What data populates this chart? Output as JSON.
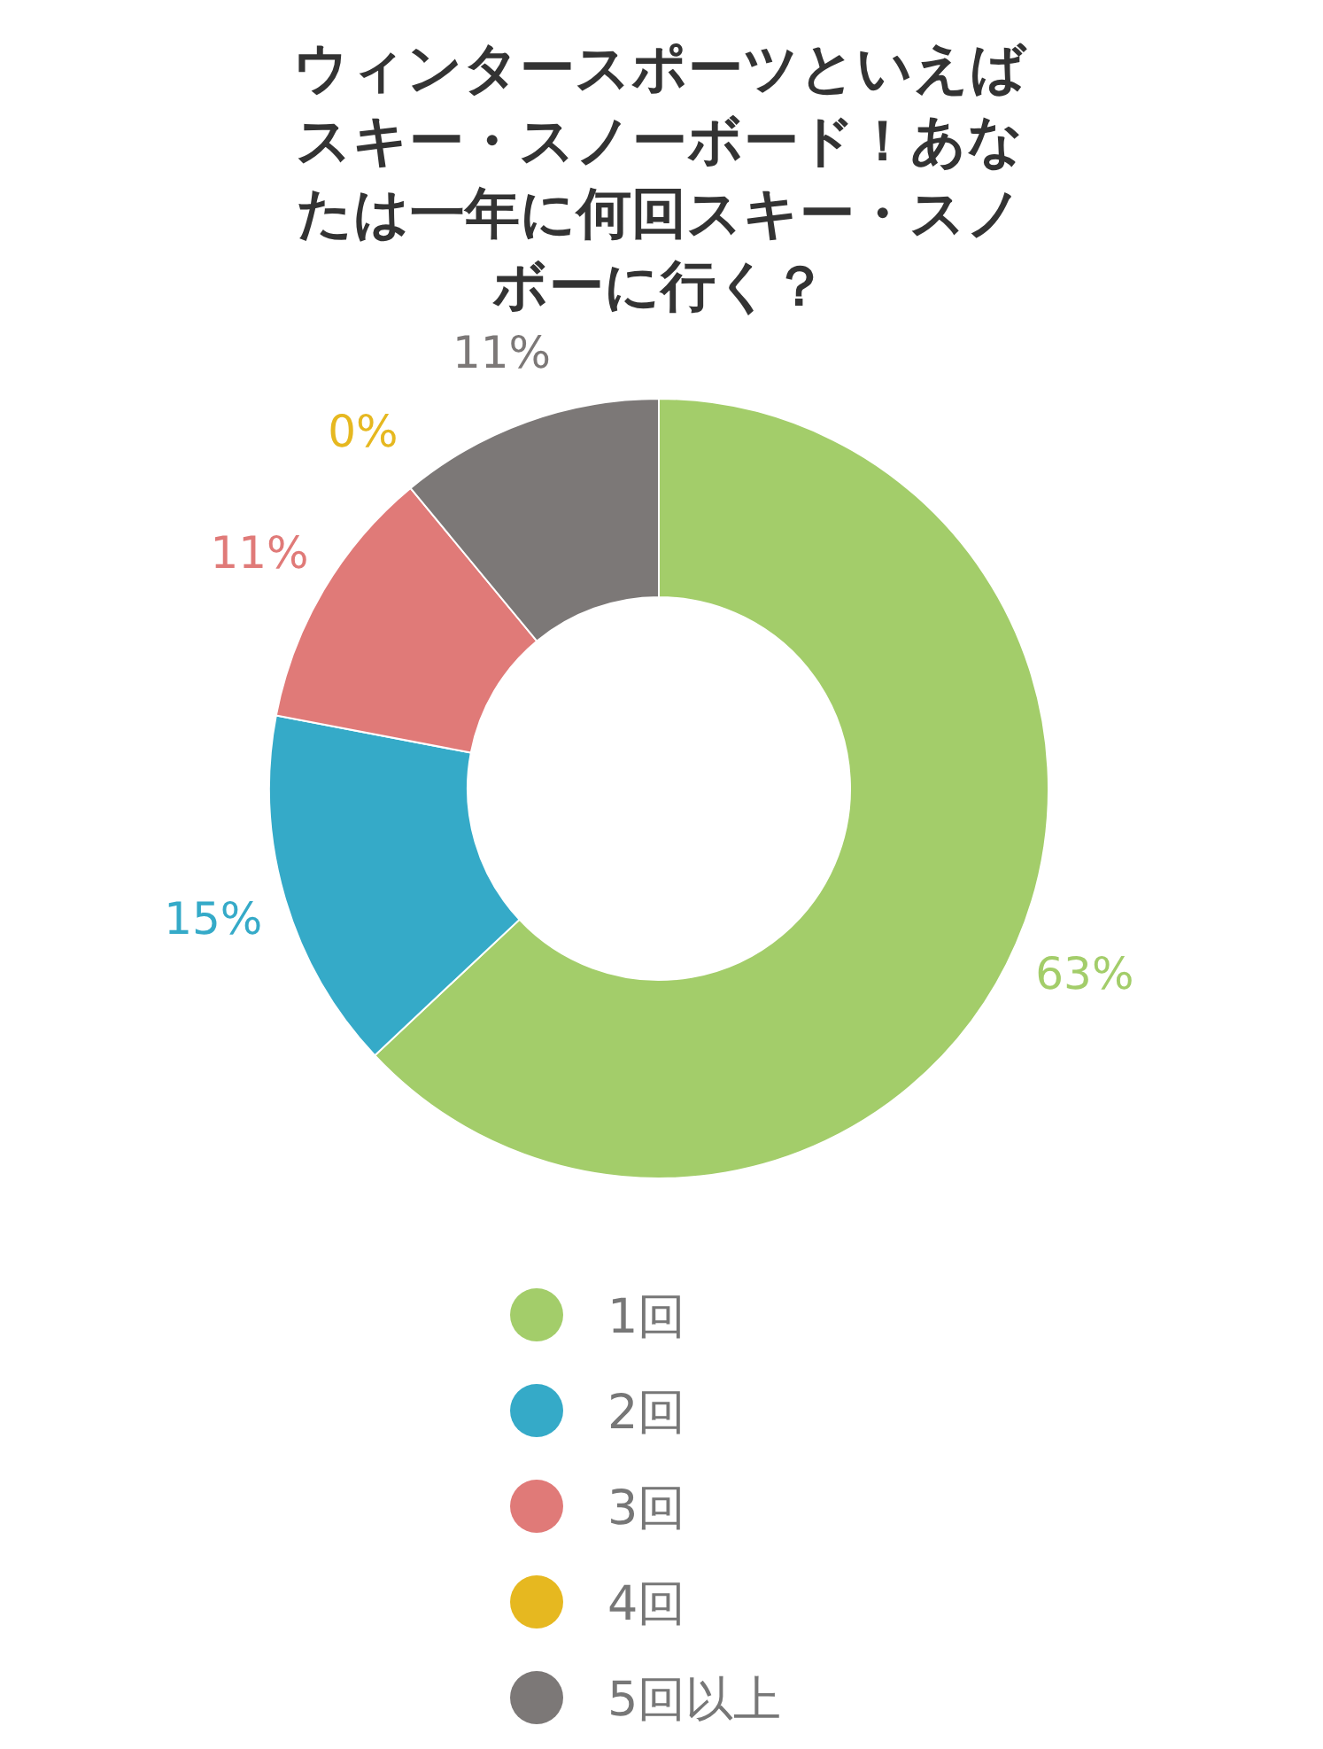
{
  "chart_data": {
    "type": "donut",
    "title": "ウィンタースポーツといえばスキー・スノーボード！あなたは一年に何回スキー・スノボーに行く？",
    "categories": [
      "1回",
      "2回",
      "3回",
      "4回",
      "5回以上"
    ],
    "values": [
      63,
      15,
      11,
      0,
      11
    ],
    "value_labels": [
      "63%",
      "15%",
      "11%",
      "0%",
      "11%"
    ],
    "colors": [
      "#a3cd6a",
      "#35aac8",
      "#e07a78",
      "#e6b820",
      "#7c7877"
    ],
    "legend": "bottom"
  }
}
